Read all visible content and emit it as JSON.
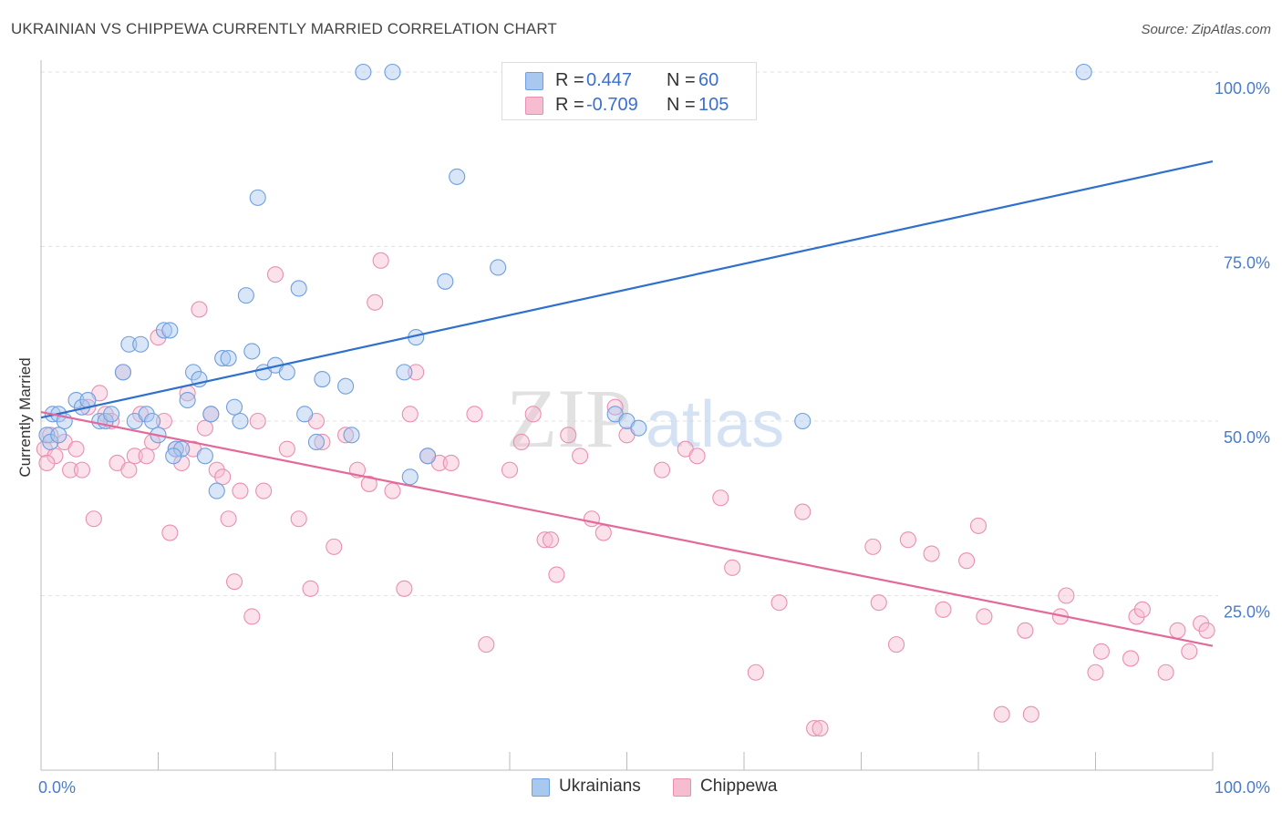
{
  "title": "UKRAINIAN VS CHIPPEWA CURRENTLY MARRIED CORRELATION CHART",
  "source": "Source: ZipAtlas.com",
  "watermark": {
    "zip": "ZIP",
    "atlas": "atlas"
  },
  "legend": {
    "rows": [
      {
        "r_label": "R =",
        "r_value": "0.447",
        "n_label": "N =",
        "n_value": "60",
        "color": "#a9c8f0"
      },
      {
        "r_label": "R =",
        "r_value": "-0.709",
        "n_label": "N =",
        "n_value": "105",
        "color": "#f6bcd0"
      }
    ]
  },
  "bottom_legend": [
    {
      "label": "Ukrainians",
      "color": "#a9c8f0"
    },
    {
      "label": "Chippewa",
      "color": "#f6bcd0"
    }
  ],
  "chart_data": {
    "type": "scatter",
    "ylabel": "Currently Married",
    "xlabel": "",
    "x_tick_labels": [
      "0.0%",
      "100.0%"
    ],
    "y_tick_labels": [
      "100.0%",
      "75.0%",
      "50.0%",
      "25.0%"
    ],
    "y_ticks": [
      100,
      75,
      50,
      25
    ],
    "xlim": [
      0,
      100
    ],
    "ylim": [
      0,
      102
    ],
    "grid": true,
    "series": [
      {
        "name": "Ukrainians",
        "color": "#6f9fdd",
        "fill": "#a9c8f0",
        "line_color": "#2f6fce",
        "trend": [
          [
            0,
            50.5
          ],
          [
            100,
            87.2
          ]
        ],
        "points": [
          [
            0.5,
            48
          ],
          [
            1,
            51
          ],
          [
            1.5,
            51
          ],
          [
            2,
            50
          ],
          [
            3,
            53
          ],
          [
            3.5,
            52
          ],
          [
            4,
            53
          ],
          [
            5,
            50
          ],
          [
            5.5,
            50
          ],
          [
            6,
            51
          ],
          [
            7,
            57
          ],
          [
            7.5,
            61
          ],
          [
            8,
            50
          ],
          [
            8.5,
            61
          ],
          [
            9,
            51
          ],
          [
            9.5,
            50
          ],
          [
            10,
            48
          ],
          [
            10.5,
            63
          ],
          [
            11,
            63
          ],
          [
            11.5,
            46
          ],
          [
            12,
            46
          ],
          [
            12.5,
            53
          ],
          [
            13,
            57
          ],
          [
            13.5,
            56
          ],
          [
            14,
            45
          ],
          [
            14.5,
            51
          ],
          [
            15,
            40
          ],
          [
            15.5,
            59
          ],
          [
            16,
            59
          ],
          [
            16.5,
            52
          ],
          [
            17,
            50
          ],
          [
            17.5,
            68
          ],
          [
            18,
            60
          ],
          [
            18.5,
            82
          ],
          [
            19,
            57
          ],
          [
            20,
            58
          ],
          [
            21,
            57
          ],
          [
            22,
            69
          ],
          [
            22.5,
            51
          ],
          [
            23.5,
            47
          ],
          [
            24,
            56
          ],
          [
            26,
            55
          ],
          [
            26.5,
            48
          ],
          [
            27.5,
            100
          ],
          [
            30,
            100
          ],
          [
            31,
            57
          ],
          [
            31.5,
            42
          ],
          [
            32,
            62
          ],
          [
            33,
            45
          ],
          [
            34.5,
            70
          ],
          [
            35.5,
            85
          ],
          [
            39,
            72
          ],
          [
            49,
            51
          ],
          [
            50,
            50
          ],
          [
            51,
            49
          ],
          [
            65,
            50
          ],
          [
            89,
            100
          ],
          [
            0.8,
            47
          ],
          [
            1.5,
            48
          ],
          [
            11.3,
            45
          ]
        ]
      },
      {
        "name": "Chippewa",
        "color": "#e98fb2",
        "fill": "#f6bcd0",
        "line_color": "#e2699a",
        "trend": [
          [
            0,
            51.3
          ],
          [
            100,
            17.8
          ]
        ],
        "points": [
          [
            0.3,
            46
          ],
          [
            0.8,
            48
          ],
          [
            1.2,
            45
          ],
          [
            2,
            47
          ],
          [
            2.5,
            43
          ],
          [
            3,
            46
          ],
          [
            3.5,
            43
          ],
          [
            4,
            52
          ],
          [
            4.5,
            36
          ],
          [
            5,
            54
          ],
          [
            5.5,
            51
          ],
          [
            6,
            50
          ],
          [
            6.5,
            44
          ],
          [
            7,
            57
          ],
          [
            7.5,
            43
          ],
          [
            8,
            45
          ],
          [
            8.5,
            51
          ],
          [
            9,
            45
          ],
          [
            9.5,
            47
          ],
          [
            10,
            62
          ],
          [
            10.5,
            50
          ],
          [
            11,
            34
          ],
          [
            11.5,
            46
          ],
          [
            12,
            44
          ],
          [
            12.5,
            54
          ],
          [
            13,
            46
          ],
          [
            13.5,
            66
          ],
          [
            14,
            49
          ],
          [
            14.5,
            51
          ],
          [
            15,
            43
          ],
          [
            15.5,
            42
          ],
          [
            16,
            36
          ],
          [
            16.5,
            27
          ],
          [
            17,
            40
          ],
          [
            18,
            22
          ],
          [
            18.5,
            50
          ],
          [
            19,
            40
          ],
          [
            20,
            71
          ],
          [
            21,
            46
          ],
          [
            22,
            36
          ],
          [
            23,
            26
          ],
          [
            23.5,
            50
          ],
          [
            24,
            47
          ],
          [
            25,
            32
          ],
          [
            26,
            48
          ],
          [
            27,
            43
          ],
          [
            28,
            41
          ],
          [
            28.5,
            67
          ],
          [
            29,
            73
          ],
          [
            30,
            40
          ],
          [
            31,
            26
          ],
          [
            31.5,
            51
          ],
          [
            32,
            57
          ],
          [
            33,
            45
          ],
          [
            34,
            44
          ],
          [
            35,
            44
          ],
          [
            37,
            51
          ],
          [
            38,
            18
          ],
          [
            40,
            43
          ],
          [
            41,
            47
          ],
          [
            42,
            51
          ],
          [
            43,
            33
          ],
          [
            43.5,
            33
          ],
          [
            44,
            28
          ],
          [
            45,
            48
          ],
          [
            46,
            45
          ],
          [
            47,
            36
          ],
          [
            48,
            34
          ],
          [
            49,
            52
          ],
          [
            50,
            48
          ],
          [
            53,
            43
          ],
          [
            55,
            46
          ],
          [
            56,
            45
          ],
          [
            58,
            39
          ],
          [
            59,
            29
          ],
          [
            61,
            14
          ],
          [
            63,
            24
          ],
          [
            65,
            37
          ],
          [
            66,
            6
          ],
          [
            66.5,
            6
          ],
          [
            71,
            32
          ],
          [
            71.5,
            24
          ],
          [
            73,
            18
          ],
          [
            74,
            33
          ],
          [
            76,
            31
          ],
          [
            77,
            23
          ],
          [
            79,
            30
          ],
          [
            80,
            35
          ],
          [
            80.5,
            22
          ],
          [
            82,
            8
          ],
          [
            84,
            20
          ],
          [
            84.5,
            8
          ],
          [
            87,
            22
          ],
          [
            87.5,
            25
          ],
          [
            90,
            14
          ],
          [
            90.5,
            17
          ],
          [
            93,
            16
          ],
          [
            93.5,
            22
          ],
          [
            94,
            23
          ],
          [
            96,
            14
          ],
          [
            97,
            20
          ],
          [
            98,
            17
          ],
          [
            99,
            21
          ],
          [
            99.5,
            20
          ],
          [
            0.5,
            44
          ]
        ]
      }
    ]
  }
}
